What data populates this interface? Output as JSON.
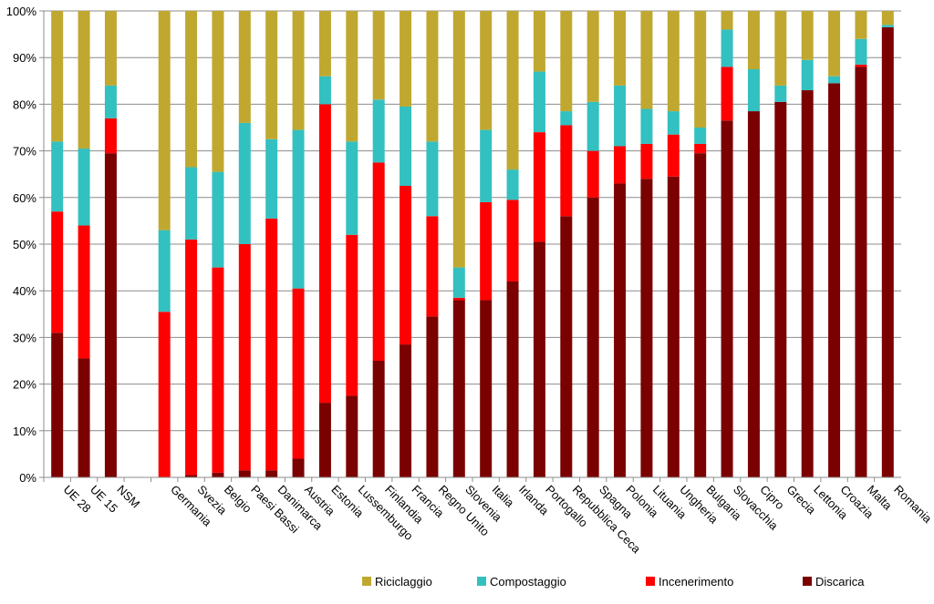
{
  "chart_data": {
    "type": "bar",
    "stacked": true,
    "title": "",
    "xlabel": "",
    "ylabel": "",
    "ylim": [
      0,
      100
    ],
    "y_ticks": [
      "0%",
      "10%",
      "20%",
      "30%",
      "40%",
      "50%",
      "60%",
      "70%",
      "80%",
      "90%",
      "100%"
    ],
    "grid": true,
    "legend_position": "bottom",
    "categories": [
      "UE 28",
      "UE 15",
      "NSM",
      "",
      "Germania",
      "Svezia",
      "Belgio",
      "Paesi Bassi",
      "Danimarca",
      "Austria",
      "Estonia",
      "Lussemburgo",
      "Finlandia",
      "Francia",
      "Regno Unito",
      "Slovenia",
      "Italia",
      "Irlanda",
      "Portogallo",
      "Repubblica Ceca",
      "Spagna",
      "Polonia",
      "Lituania",
      "Ungheria",
      "Bulgaria",
      "Slovacchia",
      "Cipro",
      "Grecia",
      "Lettonia",
      "Croazia",
      "Malta",
      "Romania"
    ],
    "series": [
      {
        "name": "Discarica",
        "color": "#7b0000",
        "values": [
          31,
          25.5,
          69.5,
          null,
          0,
          0.5,
          1,
          1.5,
          1.5,
          4,
          16,
          17.5,
          25,
          28.5,
          34.5,
          38,
          38,
          42,
          50.5,
          56,
          60,
          63,
          64,
          64.5,
          69.5,
          76.5,
          78.5,
          80.5,
          83,
          84.5,
          88,
          96.5
        ]
      },
      {
        "name": "Incenerimento",
        "color": "#ff0000",
        "values": [
          26,
          28.5,
          7.5,
          null,
          35.5,
          50.5,
          44,
          48.5,
          54,
          36.5,
          64,
          34.5,
          42.5,
          34,
          21.5,
          0.5,
          21,
          17.5,
          23.5,
          19.5,
          10,
          8,
          7.5,
          9,
          2,
          11.5,
          0,
          0,
          0,
          0,
          0.5,
          0
        ]
      },
      {
        "name": "Compostaggio",
        "color": "#33c0c0",
        "values": [
          15,
          16.5,
          7,
          null,
          17.5,
          15.5,
          20.5,
          26,
          17,
          34,
          6,
          20,
          13.5,
          17,
          16,
          6.5,
          15.5,
          6.5,
          13,
          3,
          10.5,
          13,
          7.5,
          5,
          3.5,
          8,
          9,
          3.5,
          6.5,
          1.5,
          5.5,
          0.5
        ]
      },
      {
        "name": "Riciclaggio",
        "color": "#c0a830",
        "values": [
          28,
          29.5,
          16,
          null,
          47,
          33.5,
          34.5,
          24,
          27.5,
          25.5,
          14,
          28,
          19,
          20.5,
          28,
          55,
          25.5,
          34,
          13,
          21.5,
          19.5,
          16,
          21,
          21.5,
          25,
          4,
          12.5,
          16,
          10.5,
          14,
          6,
          3
        ]
      }
    ],
    "legend_order": [
      "Riciclaggio",
      "Compostaggio",
      "Incenerimento",
      "Discarica"
    ]
  }
}
